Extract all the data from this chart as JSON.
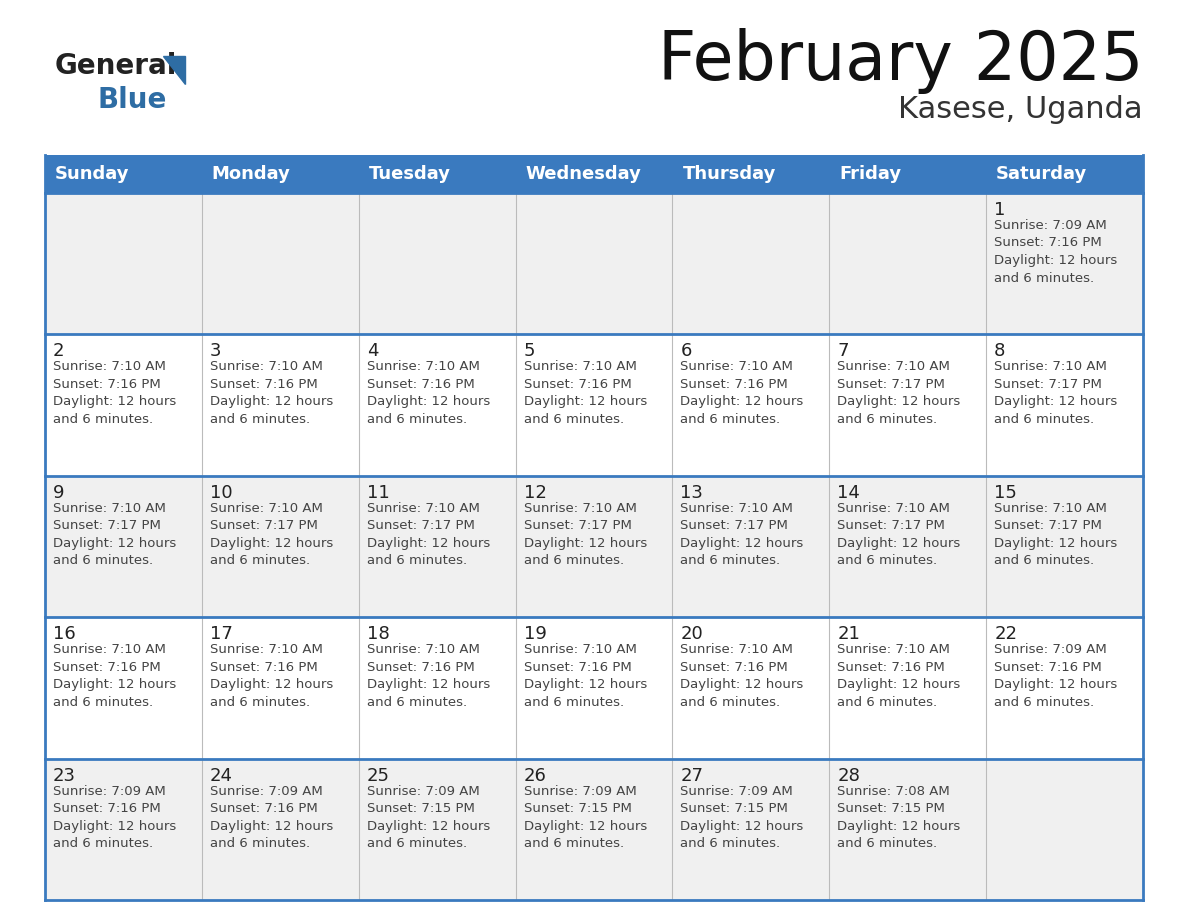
{
  "title": "February 2025",
  "subtitle": "Kasese, Uganda",
  "days_of_week": [
    "Sunday",
    "Monday",
    "Tuesday",
    "Wednesday",
    "Thursday",
    "Friday",
    "Saturday"
  ],
  "header_bg": "#3a7abf",
  "header_text": "#ffffff",
  "row_bg_light": "#f0f0f0",
  "row_bg_white": "#ffffff",
  "cell_border_color": "#3a7abf",
  "inner_border_color": "#bbbbbb",
  "day_num_color": "#222222",
  "info_text_color": "#444444",
  "title_color": "#111111",
  "subtitle_color": "#333333",
  "logo_text_color": "#222222",
  "logo_blue_color": "#2e6da4",
  "calendar": [
    [
      null,
      null,
      null,
      null,
      null,
      null,
      {
        "day": "1",
        "sunrise": "7:09 AM",
        "sunset": "7:16 PM",
        "daylight": "12 hours\nand 6 minutes."
      }
    ],
    [
      {
        "day": "2",
        "sunrise": "7:10 AM",
        "sunset": "7:16 PM",
        "daylight": "12 hours\nand 6 minutes."
      },
      {
        "day": "3",
        "sunrise": "7:10 AM",
        "sunset": "7:16 PM",
        "daylight": "12 hours\nand 6 minutes."
      },
      {
        "day": "4",
        "sunrise": "7:10 AM",
        "sunset": "7:16 PM",
        "daylight": "12 hours\nand 6 minutes."
      },
      {
        "day": "5",
        "sunrise": "7:10 AM",
        "sunset": "7:16 PM",
        "daylight": "12 hours\nand 6 minutes."
      },
      {
        "day": "6",
        "sunrise": "7:10 AM",
        "sunset": "7:16 PM",
        "daylight": "12 hours\nand 6 minutes."
      },
      {
        "day": "7",
        "sunrise": "7:10 AM",
        "sunset": "7:17 PM",
        "daylight": "12 hours\nand 6 minutes."
      },
      {
        "day": "8",
        "sunrise": "7:10 AM",
        "sunset": "7:17 PM",
        "daylight": "12 hours\nand 6 minutes."
      }
    ],
    [
      {
        "day": "9",
        "sunrise": "7:10 AM",
        "sunset": "7:17 PM",
        "daylight": "12 hours\nand 6 minutes."
      },
      {
        "day": "10",
        "sunrise": "7:10 AM",
        "sunset": "7:17 PM",
        "daylight": "12 hours\nand 6 minutes."
      },
      {
        "day": "11",
        "sunrise": "7:10 AM",
        "sunset": "7:17 PM",
        "daylight": "12 hours\nand 6 minutes."
      },
      {
        "day": "12",
        "sunrise": "7:10 AM",
        "sunset": "7:17 PM",
        "daylight": "12 hours\nand 6 minutes."
      },
      {
        "day": "13",
        "sunrise": "7:10 AM",
        "sunset": "7:17 PM",
        "daylight": "12 hours\nand 6 minutes."
      },
      {
        "day": "14",
        "sunrise": "7:10 AM",
        "sunset": "7:17 PM",
        "daylight": "12 hours\nand 6 minutes."
      },
      {
        "day": "15",
        "sunrise": "7:10 AM",
        "sunset": "7:17 PM",
        "daylight": "12 hours\nand 6 minutes."
      }
    ],
    [
      {
        "day": "16",
        "sunrise": "7:10 AM",
        "sunset": "7:16 PM",
        "daylight": "12 hours\nand 6 minutes."
      },
      {
        "day": "17",
        "sunrise": "7:10 AM",
        "sunset": "7:16 PM",
        "daylight": "12 hours\nand 6 minutes."
      },
      {
        "day": "18",
        "sunrise": "7:10 AM",
        "sunset": "7:16 PM",
        "daylight": "12 hours\nand 6 minutes."
      },
      {
        "day": "19",
        "sunrise": "7:10 AM",
        "sunset": "7:16 PM",
        "daylight": "12 hours\nand 6 minutes."
      },
      {
        "day": "20",
        "sunrise": "7:10 AM",
        "sunset": "7:16 PM",
        "daylight": "12 hours\nand 6 minutes."
      },
      {
        "day": "21",
        "sunrise": "7:10 AM",
        "sunset": "7:16 PM",
        "daylight": "12 hours\nand 6 minutes."
      },
      {
        "day": "22",
        "sunrise": "7:09 AM",
        "sunset": "7:16 PM",
        "daylight": "12 hours\nand 6 minutes."
      }
    ],
    [
      {
        "day": "23",
        "sunrise": "7:09 AM",
        "sunset": "7:16 PM",
        "daylight": "12 hours\nand 6 minutes."
      },
      {
        "day": "24",
        "sunrise": "7:09 AM",
        "sunset": "7:16 PM",
        "daylight": "12 hours\nand 6 minutes."
      },
      {
        "day": "25",
        "sunrise": "7:09 AM",
        "sunset": "7:15 PM",
        "daylight": "12 hours\nand 6 minutes."
      },
      {
        "day": "26",
        "sunrise": "7:09 AM",
        "sunset": "7:15 PM",
        "daylight": "12 hours\nand 6 minutes."
      },
      {
        "day": "27",
        "sunrise": "7:09 AM",
        "sunset": "7:15 PM",
        "daylight": "12 hours\nand 6 minutes."
      },
      {
        "day": "28",
        "sunrise": "7:08 AM",
        "sunset": "7:15 PM",
        "daylight": "12 hours\nand 6 minutes."
      },
      null
    ]
  ]
}
